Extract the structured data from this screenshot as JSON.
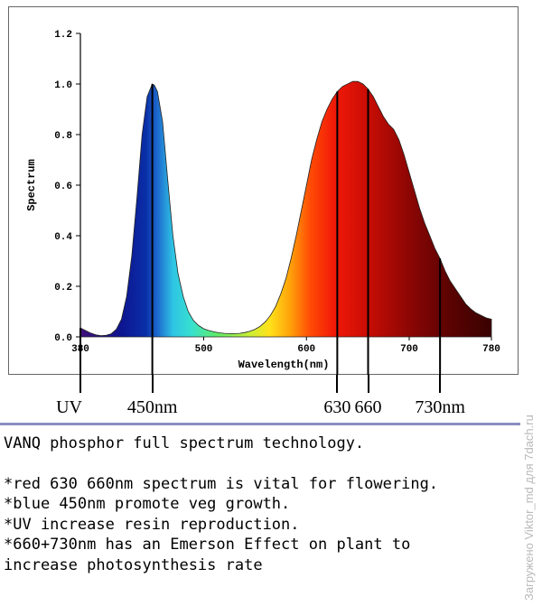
{
  "chart_data": {
    "type": "area",
    "ylabel": "Spectrum",
    "xlabel": "Wavelength(nm)",
    "xlim": [
      380,
      780
    ],
    "ylim": [
      0,
      1.2
    ],
    "xticks": [
      "380",
      "500",
      "600",
      "700",
      "780"
    ],
    "yticks": [
      "0.0",
      "0.2",
      "0.4",
      "0.6",
      "0.8",
      "1.0",
      "1.2"
    ],
    "series": [
      {
        "name": "Spectrum",
        "x": [
          380,
          385,
          390,
          395,
          400,
          405,
          410,
          415,
          420,
          425,
          430,
          435,
          440,
          445,
          450,
          452,
          455,
          460,
          465,
          470,
          475,
          480,
          485,
          490,
          495,
          500,
          505,
          510,
          515,
          520,
          525,
          530,
          535,
          540,
          545,
          550,
          555,
          560,
          565,
          570,
          575,
          580,
          585,
          590,
          595,
          600,
          605,
          610,
          615,
          620,
          625,
          630,
          635,
          640,
          645,
          650,
          655,
          660,
          665,
          670,
          675,
          680,
          685,
          690,
          695,
          700,
          705,
          710,
          715,
          720,
          725,
          730,
          735,
          740,
          745,
          750,
          755,
          760,
          765,
          770,
          775,
          780
        ],
        "values": [
          0.035,
          0.025,
          0.015,
          0.008,
          0.005,
          0.006,
          0.012,
          0.03,
          0.07,
          0.16,
          0.32,
          0.55,
          0.8,
          0.95,
          1.0,
          0.995,
          0.97,
          0.85,
          0.62,
          0.4,
          0.25,
          0.16,
          0.1,
          0.065,
          0.045,
          0.032,
          0.025,
          0.02,
          0.016,
          0.014,
          0.013,
          0.013,
          0.014,
          0.017,
          0.022,
          0.03,
          0.042,
          0.06,
          0.085,
          0.12,
          0.17,
          0.23,
          0.31,
          0.4,
          0.5,
          0.6,
          0.7,
          0.78,
          0.85,
          0.9,
          0.94,
          0.97,
          0.99,
          1.0,
          1.01,
          1.01,
          1.0,
          0.98,
          0.95,
          0.91,
          0.87,
          0.84,
          0.82,
          0.78,
          0.72,
          0.65,
          0.58,
          0.51,
          0.45,
          0.4,
          0.35,
          0.31,
          0.26,
          0.22,
          0.19,
          0.16,
          0.13,
          0.11,
          0.095,
          0.085,
          0.075,
          0.07
        ]
      }
    ]
  },
  "markers": [
    {
      "name": "uv",
      "wavelength": 380,
      "label": "UV"
    },
    {
      "name": "blue-450",
      "wavelength": 450,
      "label": "450nm"
    },
    {
      "name": "red-630",
      "wavelength": 630,
      "label": "630"
    },
    {
      "name": "red-660",
      "wavelength": 660,
      "label": "660"
    },
    {
      "name": "far-red-730",
      "wavelength": 730,
      "label": "730nm"
    }
  ],
  "notes": {
    "headline": "VANQ phosphor full spectrum technology.",
    "line1": "*red 630 660nm spectrum is vital for flowering.",
    "line2": "*blue 450nm promote veg growth.",
    "line3": "*UV increase resin reproduction.",
    "line4": "*660+730nm has an Emerson Effect on plant to",
    "line5": "increase photosynthesis rate"
  },
  "watermark": "Загружено Viktor_md для 7dach.ru"
}
